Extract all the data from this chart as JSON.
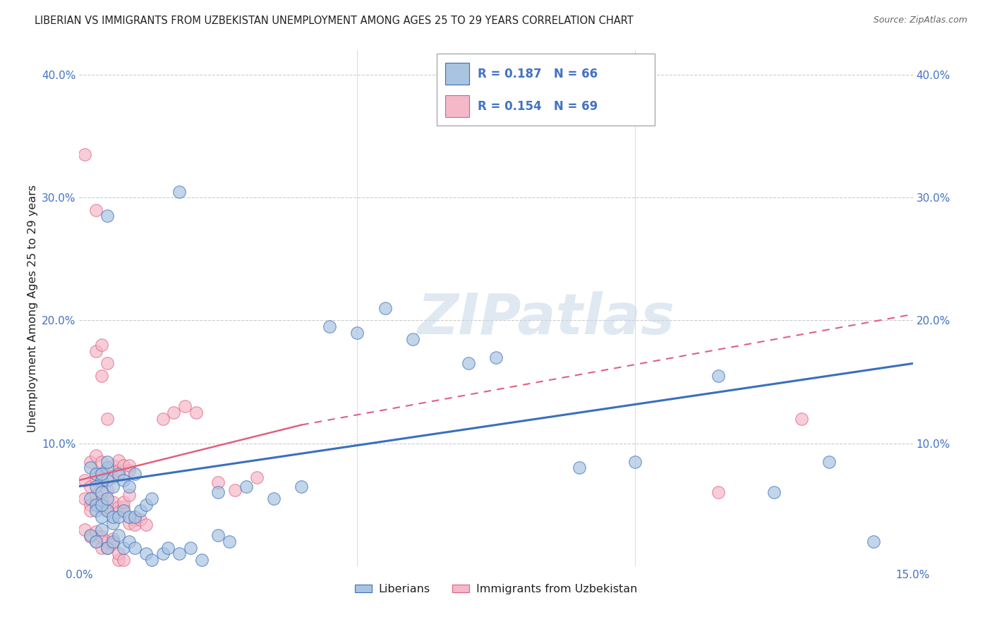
{
  "title": "LIBERIAN VS IMMIGRANTS FROM UZBEKISTAN UNEMPLOYMENT AMONG AGES 25 TO 29 YEARS CORRELATION CHART",
  "source": "Source: ZipAtlas.com",
  "ylabel": "Unemployment Among Ages 25 to 29 years",
  "xlim": [
    0.0,
    0.15
  ],
  "ylim": [
    0.0,
    0.42
  ],
  "xticks": [
    0.0,
    0.05,
    0.1,
    0.15
  ],
  "xtick_labels": [
    "0.0%",
    "",
    "",
    "15.0%"
  ],
  "yticks": [
    0.0,
    0.1,
    0.2,
    0.3,
    0.4
  ],
  "ytick_labels": [
    "",
    "10.0%",
    "20.0%",
    "30.0%",
    "40.0%"
  ],
  "legend_labels": [
    "Liberians",
    "Immigrants from Uzbekistan"
  ],
  "blue_color": "#a8c4e0",
  "pink_color": "#f4b8c8",
  "blue_line_color": "#3a6fbd",
  "pink_line_color": "#e06080",
  "background_color": "#ffffff",
  "grid_color": "#cccccc",
  "title_color": "#222222",
  "axis_color": "#4472c4",
  "watermark": "ZIPatlas",
  "blue_scatter": [
    [
      0.002,
      0.08
    ],
    [
      0.003,
      0.075
    ],
    [
      0.004,
      0.07
    ],
    [
      0.005,
      0.08
    ],
    [
      0.003,
      0.065
    ],
    [
      0.004,
      0.06
    ],
    [
      0.005,
      0.07
    ],
    [
      0.006,
      0.065
    ],
    [
      0.002,
      0.055
    ],
    [
      0.003,
      0.05
    ],
    [
      0.004,
      0.075
    ],
    [
      0.005,
      0.085
    ],
    [
      0.007,
      0.075
    ],
    [
      0.008,
      0.07
    ],
    [
      0.009,
      0.065
    ],
    [
      0.01,
      0.075
    ],
    [
      0.003,
      0.045
    ],
    [
      0.004,
      0.04
    ],
    [
      0.005,
      0.045
    ],
    [
      0.006,
      0.035
    ],
    [
      0.004,
      0.05
    ],
    [
      0.005,
      0.055
    ],
    [
      0.006,
      0.04
    ],
    [
      0.007,
      0.04
    ],
    [
      0.008,
      0.045
    ],
    [
      0.009,
      0.04
    ],
    [
      0.01,
      0.04
    ],
    [
      0.011,
      0.045
    ],
    [
      0.012,
      0.05
    ],
    [
      0.013,
      0.055
    ],
    [
      0.002,
      0.025
    ],
    [
      0.003,
      0.02
    ],
    [
      0.004,
      0.03
    ],
    [
      0.005,
      0.015
    ],
    [
      0.006,
      0.02
    ],
    [
      0.007,
      0.025
    ],
    [
      0.008,
      0.015
    ],
    [
      0.009,
      0.02
    ],
    [
      0.01,
      0.015
    ],
    [
      0.012,
      0.01
    ],
    [
      0.013,
      0.005
    ],
    [
      0.015,
      0.01
    ],
    [
      0.016,
      0.015
    ],
    [
      0.018,
      0.01
    ],
    [
      0.02,
      0.015
    ],
    [
      0.022,
      0.005
    ],
    [
      0.025,
      0.025
    ],
    [
      0.027,
      0.02
    ],
    [
      0.025,
      0.06
    ],
    [
      0.03,
      0.065
    ],
    [
      0.035,
      0.055
    ],
    [
      0.04,
      0.065
    ],
    [
      0.055,
      0.21
    ],
    [
      0.06,
      0.185
    ],
    [
      0.045,
      0.195
    ],
    [
      0.05,
      0.19
    ],
    [
      0.07,
      0.165
    ],
    [
      0.075,
      0.17
    ],
    [
      0.09,
      0.08
    ],
    [
      0.1,
      0.085
    ],
    [
      0.115,
      0.155
    ],
    [
      0.125,
      0.06
    ],
    [
      0.135,
      0.085
    ],
    [
      0.143,
      0.02
    ],
    [
      0.018,
      0.305
    ],
    [
      0.005,
      0.285
    ]
  ],
  "pink_scatter": [
    [
      0.002,
      0.085
    ],
    [
      0.003,
      0.175
    ],
    [
      0.004,
      0.155
    ],
    [
      0.004,
      0.18
    ],
    [
      0.005,
      0.165
    ],
    [
      0.005,
      0.12
    ],
    [
      0.003,
      0.09
    ],
    [
      0.004,
      0.075
    ],
    [
      0.001,
      0.07
    ],
    [
      0.002,
      0.065
    ],
    [
      0.003,
      0.07
    ],
    [
      0.003,
      0.075
    ],
    [
      0.004,
      0.085
    ],
    [
      0.004,
      0.068
    ],
    [
      0.005,
      0.062
    ],
    [
      0.005,
      0.078
    ],
    [
      0.006,
      0.072
    ],
    [
      0.006,
      0.082
    ],
    [
      0.007,
      0.078
    ],
    [
      0.007,
      0.086
    ],
    [
      0.008,
      0.082
    ],
    [
      0.009,
      0.078
    ],
    [
      0.009,
      0.082
    ],
    [
      0.001,
      0.055
    ],
    [
      0.002,
      0.05
    ],
    [
      0.002,
      0.045
    ],
    [
      0.003,
      0.052
    ],
    [
      0.003,
      0.058
    ],
    [
      0.004,
      0.048
    ],
    [
      0.004,
      0.053
    ],
    [
      0.005,
      0.045
    ],
    [
      0.005,
      0.048
    ],
    [
      0.006,
      0.052
    ],
    [
      0.007,
      0.048
    ],
    [
      0.007,
      0.044
    ],
    [
      0.008,
      0.048
    ],
    [
      0.008,
      0.052
    ],
    [
      0.009,
      0.058
    ],
    [
      0.015,
      0.12
    ],
    [
      0.017,
      0.125
    ],
    [
      0.019,
      0.13
    ],
    [
      0.021,
      0.125
    ],
    [
      0.001,
      0.03
    ],
    [
      0.002,
      0.024
    ],
    [
      0.003,
      0.028
    ],
    [
      0.003,
      0.02
    ],
    [
      0.004,
      0.015
    ],
    [
      0.004,
      0.024
    ],
    [
      0.005,
      0.02
    ],
    [
      0.005,
      0.015
    ],
    [
      0.006,
      0.022
    ],
    [
      0.006,
      0.018
    ],
    [
      0.007,
      0.005
    ],
    [
      0.007,
      0.01
    ],
    [
      0.008,
      0.005
    ],
    [
      0.009,
      0.035
    ],
    [
      0.01,
      0.038
    ],
    [
      0.01,
      0.034
    ],
    [
      0.011,
      0.038
    ],
    [
      0.012,
      0.034
    ],
    [
      0.001,
      0.335
    ],
    [
      0.003,
      0.29
    ],
    [
      0.025,
      0.068
    ],
    [
      0.028,
      0.062
    ],
    [
      0.032,
      0.072
    ],
    [
      0.13,
      0.12
    ],
    [
      0.115,
      0.06
    ]
  ],
  "blue_line": [
    [
      0.0,
      0.065
    ],
    [
      0.15,
      0.165
    ]
  ],
  "pink_line_solid": [
    [
      0.0,
      0.07
    ],
    [
      0.04,
      0.115
    ]
  ],
  "pink_line_dashed": [
    [
      0.04,
      0.115
    ],
    [
      0.15,
      0.205
    ]
  ]
}
